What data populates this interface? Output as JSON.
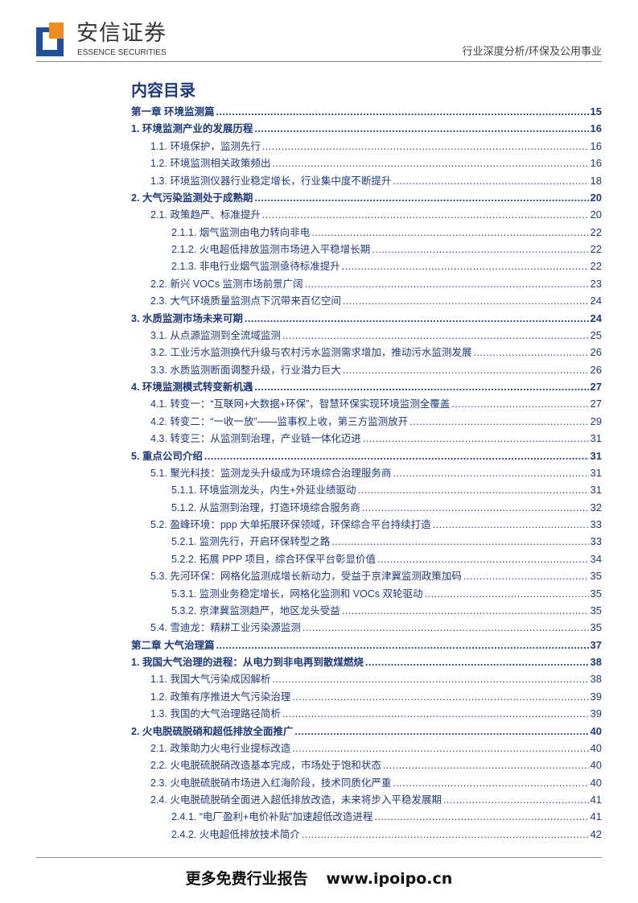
{
  "header": {
    "brand_cn": "安信证券",
    "brand_en": "ESSENCE SECURITIES",
    "category": "行业深度分析/环保及公用事业"
  },
  "toc_title": "内容目录",
  "entries": [
    {
      "level": 0,
      "label": "第一章  环境监测篇",
      "page": "15"
    },
    {
      "level": 0,
      "label": "1. 环境监测产业的发展历程",
      "page": "16"
    },
    {
      "level": 1,
      "label": "1.1. 环境保护，监测先行",
      "page": "16"
    },
    {
      "level": 1,
      "label": "1.2. 环境监测相关政策频出",
      "page": "16"
    },
    {
      "level": 1,
      "label": "1.3. 环境监测仪器行业稳定增长，行业集中度不断提升",
      "page": "18"
    },
    {
      "level": 0,
      "label": "2. 大气污染监测处于成熟期",
      "page": "20"
    },
    {
      "level": 1,
      "label": "2.1. 政策趋严、标准提升",
      "page": "20"
    },
    {
      "level": 2,
      "label": "2.1.1. 烟气监测由电力转向非电",
      "page": "22"
    },
    {
      "level": 2,
      "label": "2.1.2. 火电超低排放监测市场进入平稳增长期",
      "page": "22"
    },
    {
      "level": 2,
      "label": "2.1.3. 非电行业烟气监测亟待标准提升",
      "page": "22"
    },
    {
      "level": 1,
      "label": "2.2. 新兴 VOCs 监测市场前景广阔",
      "page": "23"
    },
    {
      "level": 1,
      "label": "2.3. 大气环境质量监测点下沉带来百亿空间",
      "page": "24"
    },
    {
      "level": 0,
      "label": "3. 水质监测市场未来可期",
      "page": "24"
    },
    {
      "level": 1,
      "label": "3.1. 从点源监测到全流域监测",
      "page": "25"
    },
    {
      "level": 1,
      "label": "3.2. 工业污水监测换代升级与农村污水监测需求增加，推动污水监测发展",
      "page": "26"
    },
    {
      "level": 1,
      "label": "3.3. 水质监测断面调整升级，行业潜力巨大",
      "page": "26"
    },
    {
      "level": 0,
      "label": "4. 环境监测模式转变新机遇",
      "page": "27"
    },
    {
      "level": 1,
      "label": "4.1. 转变一：“互联网+大数据+环保”，智慧环保实现环境监测全覆盖",
      "page": "27"
    },
    {
      "level": 1,
      "label": "4.2. 转变二：“一收一放”——监事权上收，第三方监测放开",
      "page": "29"
    },
    {
      "level": 1,
      "label": "4.3. 转变三：从监测到治理，产业链一体化迈进",
      "page": "31"
    },
    {
      "level": 0,
      "label": "5. 重点公司介绍",
      "page": "31"
    },
    {
      "level": 1,
      "label": "5.1. 聚光科技：监测龙头升级成为环境综合治理服务商",
      "page": "31"
    },
    {
      "level": 2,
      "label": "5.1.1. 环境监测龙头，内生+外延业绩驱动",
      "page": "31"
    },
    {
      "level": 2,
      "label": "5.1.2. 从监测到治理，打造环境综合服务商",
      "page": "32"
    },
    {
      "level": 1,
      "label": "5.2. 盈峰环境：ppp 大单拓展环保领域，环保综合平台持续打造",
      "page": "33"
    },
    {
      "level": 2,
      "label": "5.2.1. 监测先行，开启环保转型之路",
      "page": "33"
    },
    {
      "level": 2,
      "label": "5.2.2. 拓展 PPP 项目，综合环保平台彰显价值",
      "page": "34"
    },
    {
      "level": 1,
      "label": "5.3. 先河环保：网格化监测成增长新动力，受益于京津冀监测政策加码",
      "page": "35"
    },
    {
      "level": 2,
      "label": "5.3.1. 监测业务稳定增长，网格化监测和 VOCs 双轮驱动",
      "page": "35"
    },
    {
      "level": 2,
      "label": "5.3.2. 京津冀监测趋严，地区龙头受益",
      "page": "35"
    },
    {
      "level": 1,
      "label": "5.4. 雪迪龙：精耕工业污染源监测",
      "page": "35"
    },
    {
      "level": 0,
      "label": "第二章  大气治理篇",
      "page": "37"
    },
    {
      "level": 0,
      "label": "1. 我国大气治理的进程：从电力到非电再到散煤燃烧",
      "page": "38"
    },
    {
      "level": 1,
      "label": "1.1. 我国大气污染成因解析",
      "page": "38"
    },
    {
      "level": 1,
      "label": "1.2. 政策有序推进大气污染治理",
      "page": "39"
    },
    {
      "level": 1,
      "label": "1.3. 我国的大气治理路径简析",
      "page": "39"
    },
    {
      "level": 0,
      "label": "2. 火电脱硫脱硝和超低排放全面推广",
      "page": "40"
    },
    {
      "level": 1,
      "label": "2.1. 政策助力火电行业提标改造",
      "page": "40"
    },
    {
      "level": 1,
      "label": "2.2. 火电脱硫脱硝改造基本完成，市场处于饱和状态",
      "page": "40"
    },
    {
      "level": 1,
      "label": "2.3. 火电脱硫脱硝市场进入红海阶段，技术同质化严重",
      "page": "40"
    },
    {
      "level": 1,
      "label": "2.4. 火电脱硫脱硝全面进入超低排放改造，未来将步入平稳发展期",
      "page": "41"
    },
    {
      "level": 2,
      "label": "2.4.1. “电厂盈利+电价补贴”加速超低改造进程",
      "page": "41"
    },
    {
      "level": 2,
      "label": "2.4.2. 火电超低排放技术简介",
      "page": "42"
    }
  ],
  "footer": {
    "text": "更多免费行业报告",
    "url": "www.ipoipo.cn"
  }
}
